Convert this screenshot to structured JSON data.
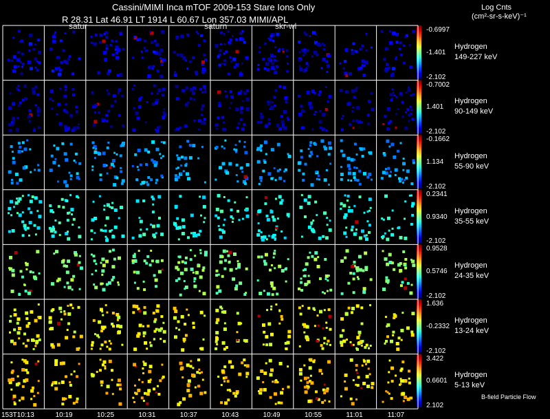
{
  "header": {
    "title": "Cassini/MIMI Inca mTOF  2009-153   Stare   Ions Only",
    "subtitle": "R        28.31 Lat 46.91 LT 1914 L        60.67 Lon       357.03  MIMI/APL",
    "annotations": [
      "satur",
      "saturn",
      "skr-wl"
    ]
  },
  "legend": {
    "title": "Log Cnts",
    "units": "(cm²-sr-s-keV)⁻¹"
  },
  "footer": {
    "flow_label": "B-field Particle Flow"
  },
  "time_axis": {
    "ticks": [
      "153T10:13",
      "10:19",
      "10:25",
      "10:31",
      "10:37",
      "10:43",
      "10:49",
      "10:55",
      "11:01",
      "11:07"
    ]
  },
  "rows": [
    {
      "species": "Hydrogen",
      "energy": "149-227 keV",
      "cbar_top": "-0.6997",
      "cbar_mid": "-1.401",
      "cbar_bot": "-2.102",
      "level": 0.08
    },
    {
      "species": "Hydrogen",
      "energy": "90-149 keV",
      "cbar_top": "-0.7002",
      "cbar_mid": "1.401",
      "cbar_bot": "-2.102",
      "level": 0.05
    },
    {
      "species": "Hydrogen",
      "energy": "55-90 keV",
      "cbar_top": "-0.1662",
      "cbar_mid": "1.134",
      "cbar_bot": "-2.102",
      "level": 0.28
    },
    {
      "species": "Hydrogen",
      "energy": "35-55 keV",
      "cbar_top": "0.2341",
      "cbar_mid": "0.9340",
      "cbar_bot": "-2.102",
      "level": 0.4
    },
    {
      "species": "Hydrogen",
      "energy": "24-35 keV",
      "cbar_top": "0.9528",
      "cbar_mid": "0.5746",
      "cbar_bot": "-2.102",
      "level": 0.5
    },
    {
      "species": "Hydrogen",
      "energy": "13-24 keV",
      "cbar_top": "1.636",
      "cbar_mid": "-0.2332",
      "cbar_bot": "-2.102",
      "level": 0.62
    },
    {
      "species": "Hydrogen",
      "energy": "5-13 keV",
      "cbar_top": "3.422",
      "cbar_mid": "0.6601",
      "cbar_bot": "2.102",
      "level": 0.66
    }
  ]
}
